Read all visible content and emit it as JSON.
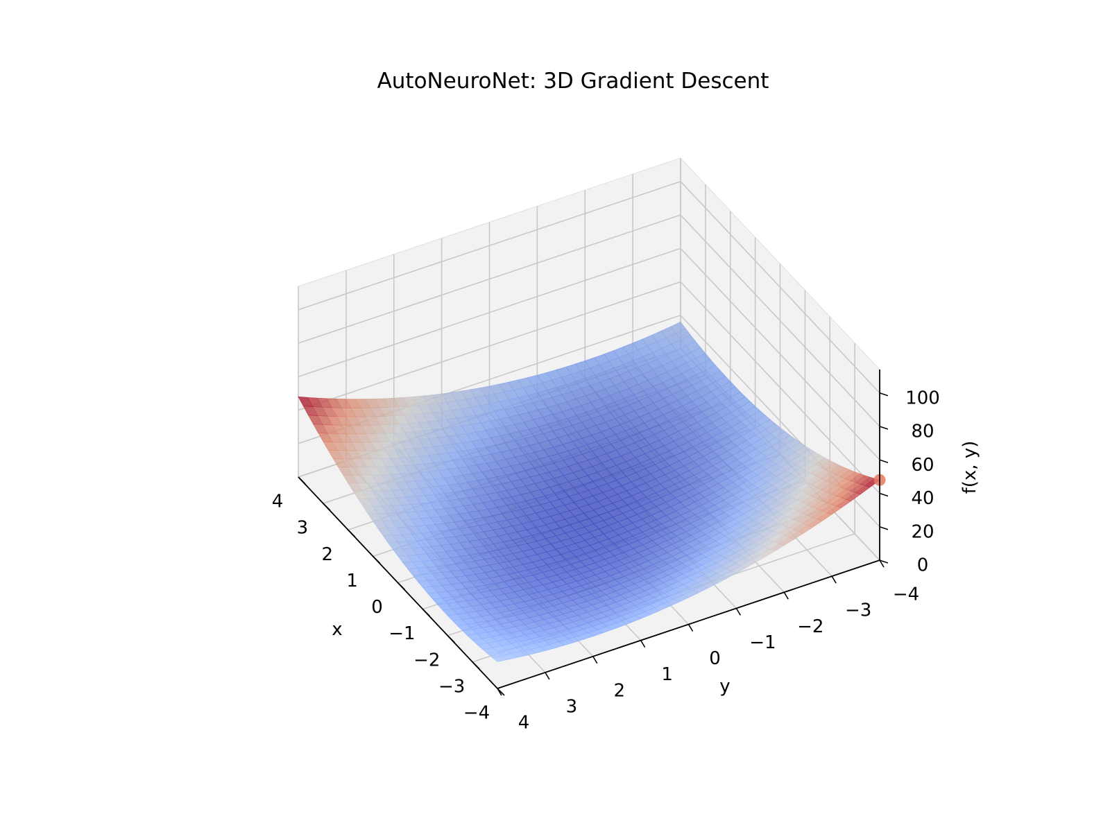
{
  "chart_data": {
    "type": "surface",
    "title": "AutoNeuroNet: 3D Gradient Descent",
    "xlabel": "x",
    "ylabel": "y",
    "zlabel": "f(x, y)",
    "function": "x^2 + y^2 + x*y",
    "x_range": [
      -4,
      4
    ],
    "y_range": [
      -4,
      4
    ],
    "z_range": [
      0,
      114
    ],
    "x_ticks": [
      -4,
      -3,
      -2,
      -1,
      0,
      1,
      2,
      3,
      4
    ],
    "y_ticks": [
      -4,
      -3,
      -2,
      -1,
      0,
      1,
      2,
      3,
      4
    ],
    "z_ticks": [
      0,
      20,
      40,
      60,
      80,
      100
    ],
    "x_tick_labels": [
      "−4",
      "−3",
      "−2",
      "−1",
      "0",
      "1",
      "2",
      "3",
      "4"
    ],
    "y_tick_labels": [
      "−4",
      "−3",
      "−2",
      "−1",
      "0",
      "1",
      "2",
      "3",
      "4"
    ],
    "z_tick_labels": [
      "0",
      "20",
      "40",
      "60",
      "80",
      "100"
    ],
    "colormap": "coolwarm",
    "colormap_stops": [
      "#3b4cc0",
      "#8db0fe",
      "#dddddd",
      "#f49a7b",
      "#b40426"
    ],
    "surface_opacity": 0.8,
    "grid": true,
    "pane_color": "#f2f2f2",
    "gradient_point": {
      "x": -4,
      "y": -4,
      "z": 48,
      "color": "#e8775e"
    }
  }
}
